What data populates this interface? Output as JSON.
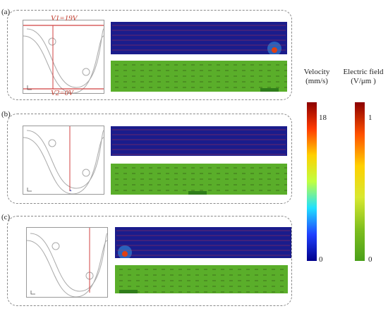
{
  "panels": [
    {
      "label": "(a)",
      "v1": "V1=19V",
      "v2": "V2=0V"
    },
    {
      "label": "(b)"
    },
    {
      "label": "(c)"
    }
  ],
  "colorbars": {
    "velocity": {
      "title": "Velocity",
      "unit": "(mm/s)",
      "ticks": [
        "18",
        "0"
      ],
      "colors": [
        "#8b0000",
        "#ff3a00",
        "#ffd000",
        "#c0ff40",
        "#20e0ff",
        "#2040ff",
        "#00008b"
      ]
    },
    "efield": {
      "title": "Electric field",
      "unit": "(V/μm )",
      "ticks": [
        "1",
        "0"
      ],
      "colors": [
        "#8b0000",
        "#ff5000",
        "#ffd000",
        "#d8e830",
        "#7fbf1e",
        "#4aa01a"
      ]
    }
  },
  "colors": {
    "velocity_bg": "#1a1c8c",
    "efield_bg": "#5aae2a",
    "arrow": "#d63c3c",
    "electrode": "#2f7d1a"
  }
}
